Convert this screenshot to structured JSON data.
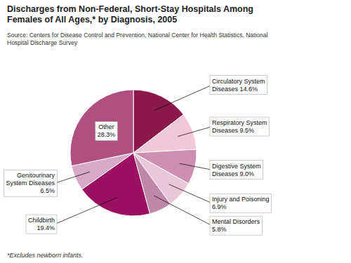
{
  "chart_data": {
    "type": "pie",
    "title": "Discharges from Non-Federal, Short-Stay Hospitals Among\nFemales of All Ages,* by Diagnosis, 2005",
    "subtitle": "Source: Centers for Disease Control and Prevention, National Center for Health Statistics, National\nHospital Discharge Survey",
    "annotations": [
      "*Excludes newborn infants."
    ],
    "categories": [
      "Circulatory System\nDiseases 14.6%",
      "Respiratory System\nDiseases 9.5%",
      "Digestive System\nDiseases 9.0%",
      "Injury and Poisoning\n6.9%",
      "Mental Disorders\n5.8%",
      "Childbirth\n19.4%",
      "Genitourinary\nSystem Diseases\n6.5%",
      "Other\n28.3%"
    ],
    "values": [
      14.6,
      9.5,
      9.0,
      6.9,
      5.8,
      19.4,
      6.5,
      28.3
    ],
    "colors": [
      "#8B1A4A",
      "#F0C8D8",
      "#CC8FAF",
      "#E8C8D8",
      "#C088A8",
      "#9B1060",
      "#D8A8C8",
      "#B05080"
    ]
  }
}
